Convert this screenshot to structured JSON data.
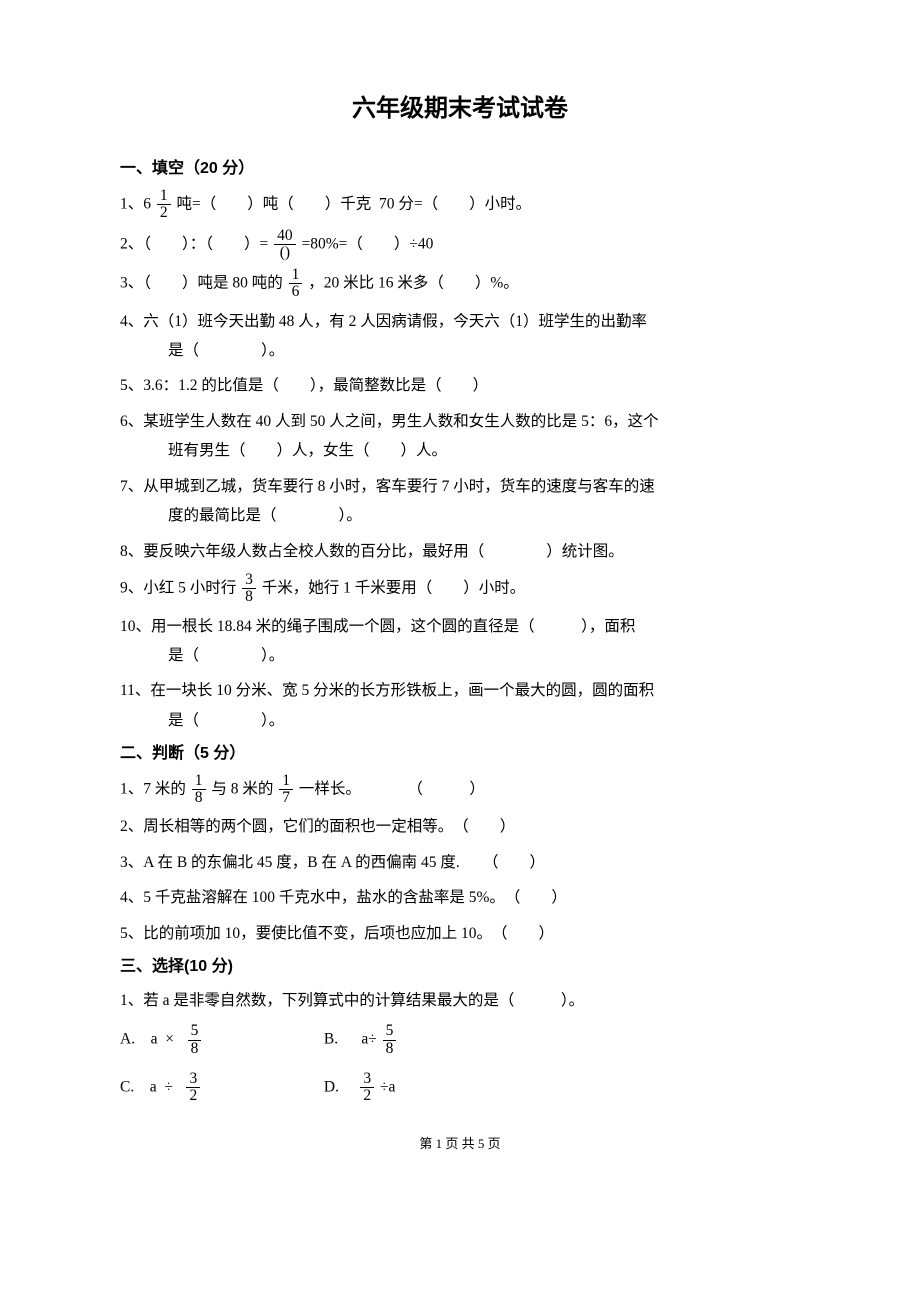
{
  "title": "六年级期末考试试卷",
  "sections": {
    "s1": {
      "head": "一、填空（20 分）"
    },
    "s2": {
      "head": "二、判断（5 分）"
    },
    "s3": {
      "head": "三、选择(10 分)"
    }
  },
  "fill": {
    "q1a": "1、6",
    "q1_frac_num": "1",
    "q1_frac_den": "2",
    "q1b": "吨=（　　）吨（　　）千克 70 分=（　　）小时。",
    "q2a": "2、（　　）：（　　）=",
    "q2_frac_num": "40",
    "q2_frac_den": "()",
    "q2b": "=80%=（　　）÷40",
    "q3a": "3、（　　）吨是 80 吨的",
    "q3_frac_num": "1",
    "q3_frac_den": "6",
    "q3b": "，20 米比 16 米多（　　）%。",
    "q4a": "4、六（1）班今天出勤 48 人，有 2 人因病请假，今天六（1）班学生的出勤率",
    "q4b": "是（　　　　）。",
    "q5": "5、3.6：1.2 的比值是（　　），最简整数比是（　　）",
    "q6a": "6、某班学生人数在 40 人到 50 人之间，男生人数和女生人数的比是 5：6，这个",
    "q6b": "班有男生（　　）人，女生（　　）人。",
    "q7a": "7、从甲城到乙城，货车要行 8 小时，客车要行 7 小时，货车的速度与客车的速",
    "q7b": "度的最简比是（　　　　）。",
    "q8": "8、要反映六年级人数占全校人数的百分比，最好用（　　　　）统计图。",
    "q9a": "9、小红 5 小时行",
    "q9_frac_num": "3",
    "q9_frac_den": "8",
    "q9b": "千米，她行 1 千米要用（　　）小时。",
    "q10a": "10、用一根长 18.84 米的绳子围成一个圆，这个圆的直径是（　　　），面积",
    "q10b": "是（　　　　）。",
    "q11a": "11、在一块长 10 分米、宽 5 分米的长方形铁板上，画一个最大的圆，圆的面积",
    "q11b": "是（　　　　）。"
  },
  "judge": {
    "q1a": "1、7 米的",
    "q1_f1_num": "1",
    "q1_f1_den": "8",
    "q1b": "与 8 米的",
    "q1_f2_num": "1",
    "q1_f2_den": "7",
    "q1c": "一样长。　　　　（　　　）",
    "q2": "2、周长相等的两个圆，它们的面积也一定相等。　（　　）",
    "q3": "3、A 在 B 的东偏北 45 度，B 在 A 的西偏南 45 度.　　（　　）",
    "q4": "4、5 千克盐溶解在 100 千克水中，盐水的含盐率是 5%。　（　　）",
    "q5": "5、比的前项加 10，要使比值不变，后项也应加上 10。　（　　）"
  },
  "choice": {
    "q1": "1、若 a 是非零自然数，下列算式中的计算结果最大的是（　　　）。",
    "optA_pre": "A.  a × ",
    "optA_num": "5",
    "optA_den": "8",
    "optB_pre": "B.   a÷",
    "optB_num": "5",
    "optB_den": "8",
    "optC_pre": "C.  a ÷ ",
    "optC_num": "3",
    "optC_den": "2",
    "optD_pre": "D.  ",
    "optD_num": "3",
    "optD_den": "2",
    "optD_post": "÷a"
  },
  "footer": {
    "prefix": "第 ",
    "current": "1",
    "mid": " 页 共 ",
    "total": "5",
    "suffix": " 页"
  }
}
